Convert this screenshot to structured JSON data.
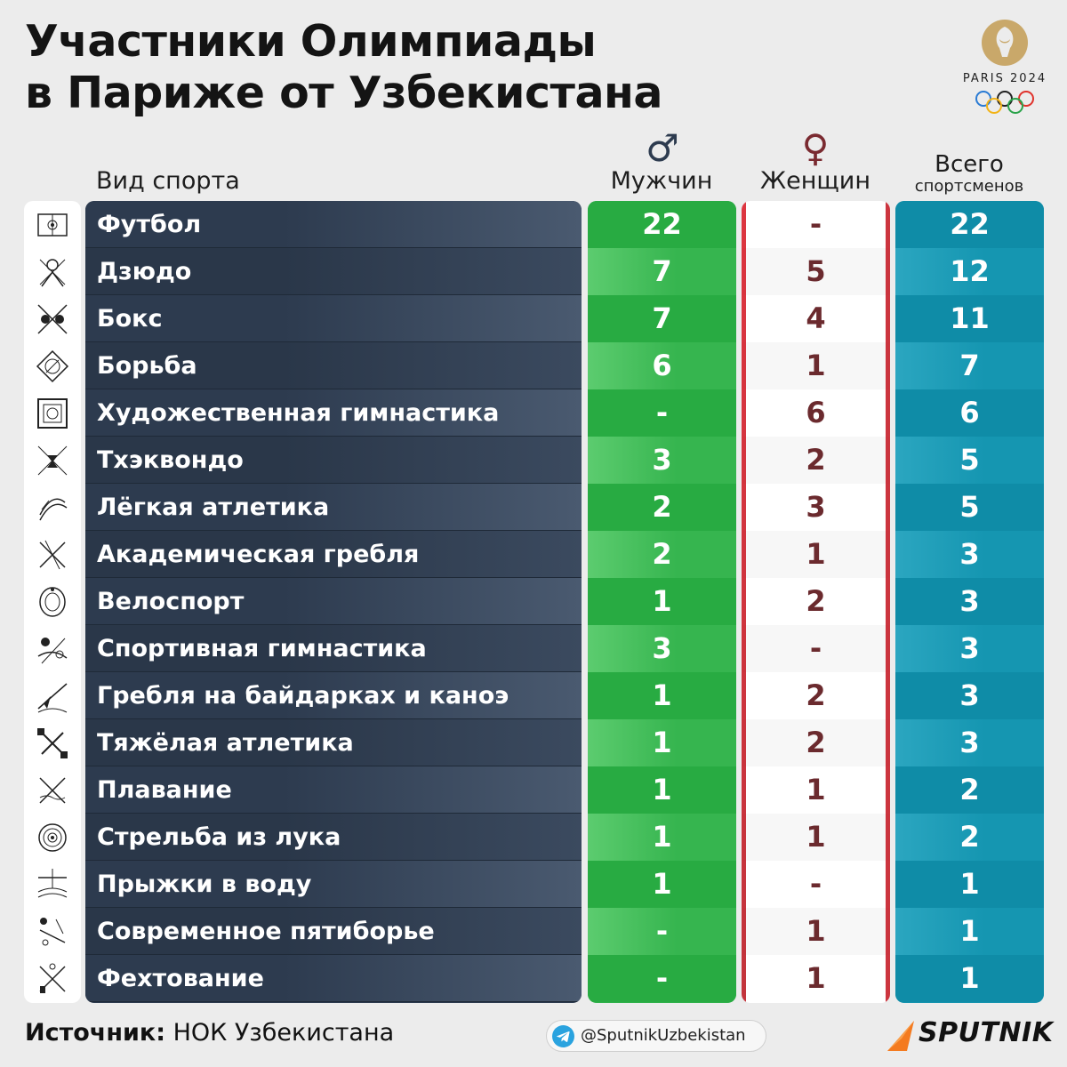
{
  "title": {
    "line1": "Участники Олимпиады",
    "line2": "в Париже от Узбекистана"
  },
  "logo": {
    "text": "PARIS 2024"
  },
  "headers": {
    "sport": "Вид спорта",
    "men_symbol": "♂",
    "men": "Мужчин",
    "women_symbol": "♀",
    "women": "Женщин",
    "total_line1": "Всего",
    "total_line2": "спортсменов"
  },
  "colors": {
    "men": "#2fb14a",
    "women_text": "#6b2a2e",
    "total": "#1493ae",
    "names_bg": "#2d3b4f",
    "women_edge": "#c3121d"
  },
  "chart_data": {
    "type": "table",
    "title": "Участники Олимпиады в Париже от Узбекистана",
    "columns": [
      "Вид спорта",
      "Мужчин",
      "Женщин",
      "Всего спортсменов"
    ],
    "rows": [
      {
        "sport": "Футбол",
        "men": "22",
        "women": "-",
        "total": "22",
        "icon": "football-icon"
      },
      {
        "sport": "Дзюдо",
        "men": "7",
        "women": "5",
        "total": "12",
        "icon": "judo-icon"
      },
      {
        "sport": "Бокс",
        "men": "7",
        "women": "4",
        "total": "11",
        "icon": "boxing-icon"
      },
      {
        "sport": "Борьба",
        "men": "6",
        "women": "1",
        "total": "7",
        "icon": "wrestling-icon"
      },
      {
        "sport": "Художественная гимнастика",
        "men": "-",
        "women": "6",
        "total": "6",
        "icon": "rhythmic-gymnastics-icon"
      },
      {
        "sport": "Тхэквондо",
        "men": "3",
        "women": "2",
        "total": "5",
        "icon": "taekwondo-icon"
      },
      {
        "sport": "Лёгкая атлетика",
        "men": "2",
        "women": "3",
        "total": "5",
        "icon": "athletics-icon"
      },
      {
        "sport": "Академическая гребля",
        "men": "2",
        "women": "1",
        "total": "3",
        "icon": "rowing-icon"
      },
      {
        "sport": "Велоспорт",
        "men": "1",
        "women": "2",
        "total": "3",
        "icon": "cycling-icon"
      },
      {
        "sport": "Спортивная гимнастика",
        "men": "3",
        "women": "-",
        "total": "3",
        "icon": "artistic-gymnastics-icon"
      },
      {
        "sport": "Гребля на байдарках и каноэ",
        "men": "1",
        "women": "2",
        "total": "3",
        "icon": "canoe-icon"
      },
      {
        "sport": "Тяжёлая атлетика",
        "men": "1",
        "women": "2",
        "total": "3",
        "icon": "weightlifting-icon"
      },
      {
        "sport": "Плавание",
        "men": "1",
        "women": "1",
        "total": "2",
        "icon": "swimming-icon"
      },
      {
        "sport": "Стрельба из лука",
        "men": "1",
        "women": "1",
        "total": "2",
        "icon": "archery-icon"
      },
      {
        "sport": "Прыжки в воду",
        "men": "1",
        "women": "-",
        "total": "1",
        "icon": "diving-icon"
      },
      {
        "sport": "Современное пятиборье",
        "men": "-",
        "women": "1",
        "total": "1",
        "icon": "modern-pentathlon-icon"
      },
      {
        "sport": "Фехтование",
        "men": "-",
        "women": "1",
        "total": "1",
        "icon": "fencing-icon"
      }
    ]
  },
  "footer": {
    "source_label": "Источник:",
    "source_value": " НОК Узбекистана",
    "telegram": "@SputnikUzbekistan",
    "brand": "SPUTNIK"
  }
}
